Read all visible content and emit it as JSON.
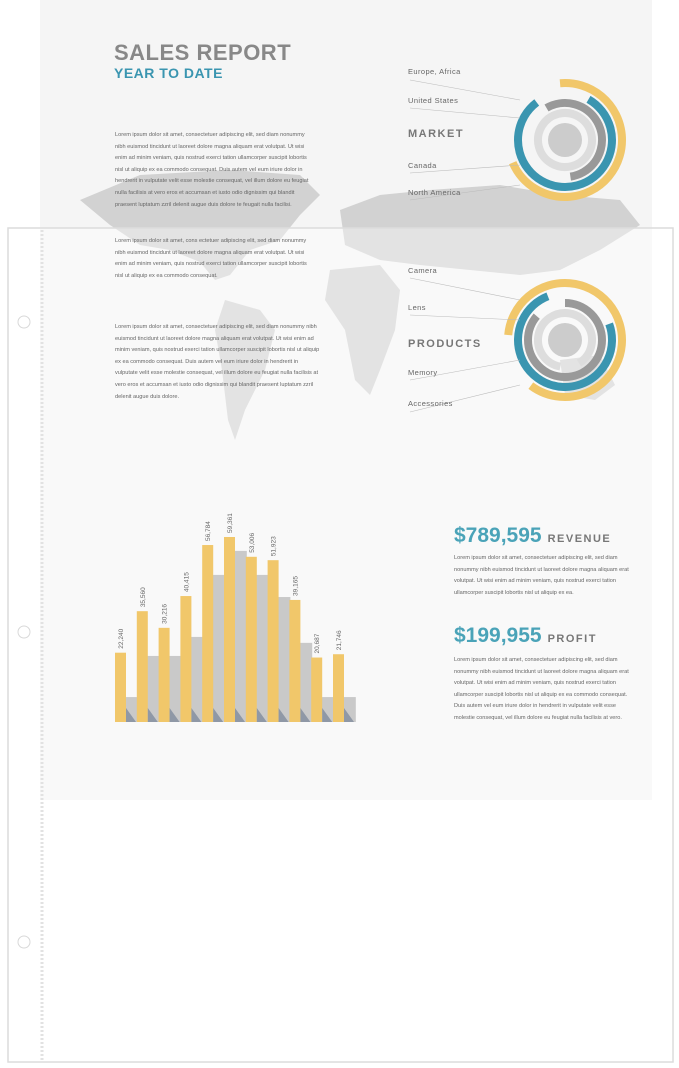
{
  "header": {
    "title": "SALES REPORT",
    "subtitle": "YEAR TO DATE"
  },
  "paragraphs": [
    "Lorem ipsum dolor sit amet, consectetuer adipiscing elit, sed diam nonummy nibh euismod tincidunt ut laoreet dolore magna aliquam erat volutpat. Ut wisi enim ad minim veniam, quis nostrud exerci tation ullamcorper suscipit lobortis nisl ut aliquip ex ea commodo consequat. Duis autem vel eum iriure dolor in hendrerit in vulputate velit esse molestie consequat, vel illum dolore eu feugiat nulla facilisis at vero eros et accumsan et iusto odio dignissim qui blandit praesent luptatum zzril delenit augue duis dolore te feugait nulla facilisi.",
    "Lorem ipsum dolor sit amet, cons ectetuer adipiscing elit, sed diam nonummy nibh euismod tincidunt ut laoreet dolore magna aliquam erat volutpat. Ut wisi enim ad minim veniam, quis nostrud exerci tation ullamcorper suscipit lobortis nisl ut aliquip ex ea commodo consequat.",
    "Lorem ipsum dolor sit amet, consectetuer adipiscing elit, sed diam nonummy nibh euismod tincidunt ut laoreet dolore magna aliquam erat volutpat. Ut wisi enim ad minim veniam, quis nostrud exerci tation ullamcorper suscipit lobortis nisl ut aliquip ex ea commodo consequat. Duis autem vel eum iriure dolor in hendrerit in vulputate velit esse molestie consequat, vel illum dolore eu feugiat nulla facilisis at vero eros et accumsan et iusto odio dignissim qui blandit praesent luptatum zzril delenit augue duis dolore."
  ],
  "market": {
    "title": "MARKET",
    "labels": [
      "Europe, Africa",
      "United States",
      "Canada",
      "North America"
    ]
  },
  "products": {
    "title": "PRODUCTS",
    "labels": [
      "Camera",
      "Lens",
      "Memory",
      "Accessories"
    ]
  },
  "bar_chart": {
    "type": "bar",
    "series": [
      {
        "color": "#f1c76a",
        "values": [
          22240,
          35560,
          30216,
          40415,
          56784,
          59361,
          53006,
          51923,
          39165,
          20687,
          21746
        ],
        "value_labels": [
          "22,240",
          "35,560",
          "30,216",
          "40,415",
          "56,784",
          "59,361",
          "53,006",
          "51,923",
          "39,165",
          "20,687",
          "21,746"
        ]
      },
      {
        "color": "#c9c9c9",
        "values": [
          8000,
          21200,
          21200,
          27300,
          47200,
          54900,
          47200,
          40100,
          25400,
          8000,
          8000
        ]
      }
    ]
  },
  "revenue": {
    "amount": "$789,595",
    "label": "REVENUE",
    "text": "Lorem ipsum dolor sit amet, consectetuer adipiscing elit, sed diam nonummy nibh euismod tincidunt ut laoreet dolore magna aliquam erat volutpat. Ut wisi enim ad minim veniam, quis nostrud exerci tation ullamcorper suscipit lobortis nisl ut aliquip ex ea."
  },
  "profit": {
    "amount": "$199,955",
    "label": "PROFIT",
    "text": "Lorem ipsum dolor sit amet, consectetuer adipiscing elit, sed diam nonummy nibh euismod tincidunt ut laoreet dolore magna aliquam erat volutpat. Ut wisi enim ad minim veniam, quis nostrud exerci tation ullamcorper suscipit lobortis nisl ut aliquip ex ea commodo consequat. Duis autem vel eum iriure dolor in hendrerit in vulputate velit esse molestie consequat, vel illum dolore eu feugiat nulla facilisis at vero."
  }
}
